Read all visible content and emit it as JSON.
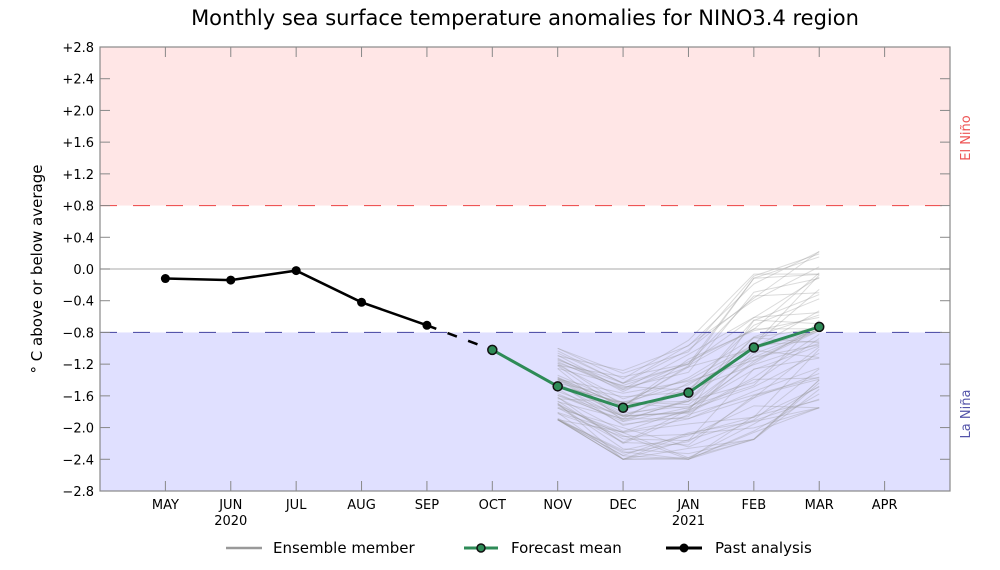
{
  "chart_data": {
    "type": "line",
    "title": "Monthly sea surface temperature anomalies for NINO3.4 region",
    "xlabel": "",
    "ylabel": "° C above or below average",
    "ylim": [
      -2.8,
      2.8
    ],
    "yticks": [
      2.8,
      2.4,
      2.0,
      1.6,
      1.2,
      0.8,
      0.4,
      0.0,
      -0.4,
      -0.8,
      -1.2,
      -1.6,
      -2.0,
      -2.4,
      -2.8
    ],
    "ytick_labels": [
      "+2.8",
      "+2.4",
      "+2.0",
      "+1.6",
      "+1.2",
      "+0.8",
      "+0.4",
      "0.0",
      "−0.4",
      "−0.8",
      "−1.2",
      "−1.6",
      "−2.0",
      "−2.4",
      "−2.8"
    ],
    "xlim_months": [
      0,
      13
    ],
    "x_categories": [
      "MAY",
      "JUN",
      "JUL",
      "AUG",
      "SEP",
      "OCT",
      "NOV",
      "DEC",
      "JAN",
      "FEB",
      "MAR",
      "APR"
    ],
    "x_year_labels": [
      {
        "month": "JUN",
        "label": "2020"
      },
      {
        "month": "JAN",
        "label": "2021"
      }
    ],
    "thresholds": {
      "el_nino": {
        "value": 0.8,
        "label": "El Niño",
        "color": "#ee5555",
        "band_color": "#ffe6e6"
      },
      "la_nina": {
        "value": -0.8,
        "label": "La Niña",
        "color": "#5555aa",
        "band_color": "#e0e0ff"
      }
    },
    "grid": false,
    "zero_line": true,
    "legend_position": "bottom",
    "series": [
      {
        "name": "Past analysis",
        "color": "#000000",
        "x": [
          "MAY",
          "JUN",
          "JUL",
          "AUG",
          "SEP"
        ],
        "values": [
          -0.12,
          -0.14,
          -0.02,
          -0.42,
          -0.71
        ]
      },
      {
        "name": "Forecast mean",
        "color": "#2e8b57",
        "x": [
          "OCT",
          "NOV",
          "DEC",
          "JAN",
          "FEB",
          "MAR"
        ],
        "values": [
          -1.02,
          -1.48,
          -1.75,
          -1.56,
          -0.99,
          -0.73
        ]
      },
      {
        "name": "Ensemble member",
        "color": "#999999",
        "x": [
          "NOV",
          "DEC",
          "JAN",
          "FEB",
          "MAR"
        ],
        "spread_min": [
          -1.9,
          -2.4,
          -2.4,
          -2.15,
          -1.75
        ],
        "spread_max": [
          -1.0,
          -1.2,
          -0.9,
          -0.05,
          0.22
        ],
        "member_count": 60
      }
    ],
    "connector": {
      "from": "SEP",
      "to": "OCT",
      "style": "dashed",
      "color": "#000000"
    },
    "legend": [
      "Ensemble member",
      "Forecast mean",
      "Past analysis"
    ]
  }
}
